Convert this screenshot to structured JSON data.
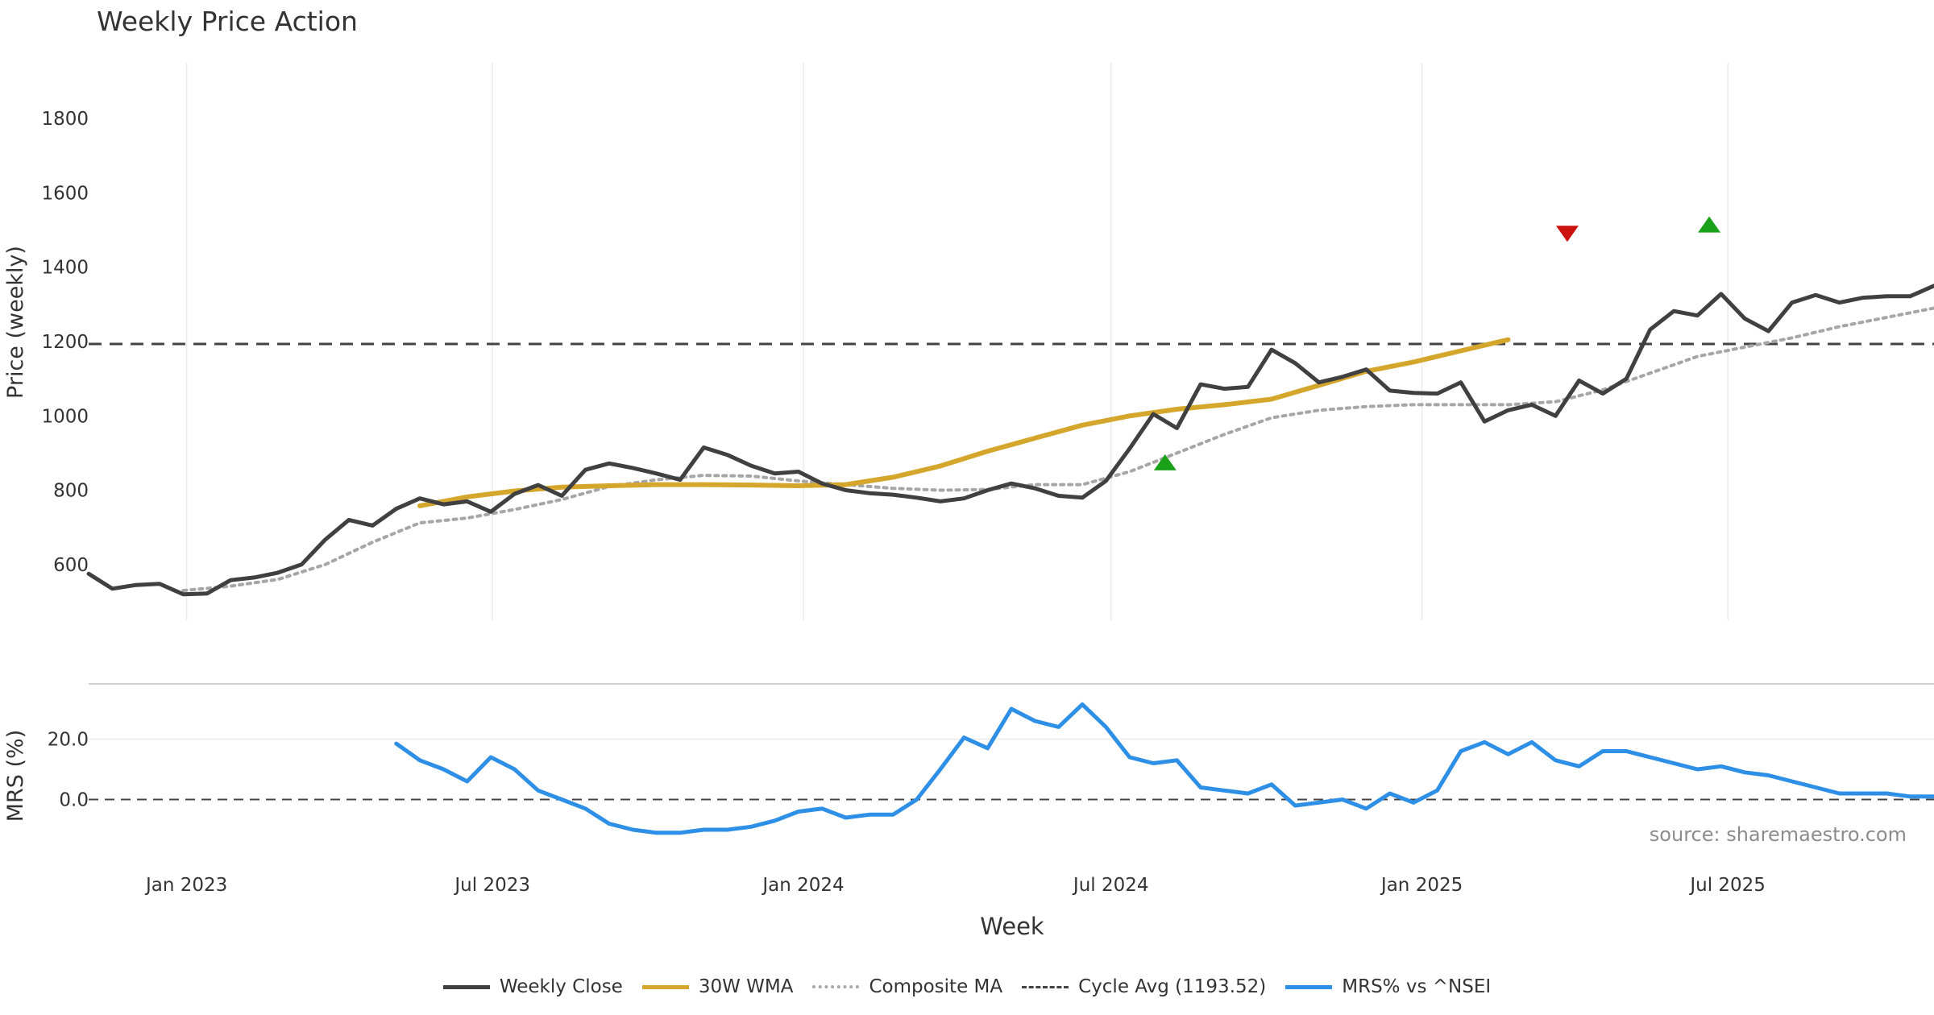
{
  "chart_data": {
    "type": "line",
    "title": "Weekly Price Action",
    "xlabel": "Week",
    "source": "source: sharemaestro.com",
    "x_ticks": [
      "Jan 2023",
      "Jul 2023",
      "Jan 2024",
      "Jul 2024",
      "Jan 2025",
      "Jul 2025"
    ],
    "x_range": [
      "2022-11-04",
      "2025-10-31"
    ],
    "panels": {
      "price": {
        "ylabel": "Price (weekly)",
        "ylim": [
          450,
          1950
        ],
        "y_ticks": [
          600,
          800,
          1000,
          1200,
          1400,
          1600,
          1800
        ],
        "grid": "vertical"
      },
      "mrs": {
        "ylabel": "MRS (%)",
        "ylim": [
          -18,
          38
        ],
        "y_ticks": [
          0.0,
          20.0
        ],
        "y_tick_labels": [
          "0.0",
          "20.0"
        ],
        "zero_line": 0
      }
    },
    "colors": {
      "close": "#404040",
      "wma": "#d4a72c",
      "composite": "#a6a6a6",
      "cycle": "#444444",
      "mrs": "#2e8fe6",
      "buy": "#1aa11a",
      "sell": "#cc1111"
    },
    "series": [
      {
        "name": "Weekly Close",
        "panel": "price",
        "style": "solid",
        "points": [
          [
            "2022-11-04",
            575
          ],
          [
            "2022-11-18",
            535
          ],
          [
            "2022-12-02",
            545
          ],
          [
            "2022-12-16",
            548
          ],
          [
            "2022-12-30",
            520
          ],
          [
            "2023-01-13",
            522
          ],
          [
            "2023-01-27",
            558
          ],
          [
            "2023-02-10",
            565
          ],
          [
            "2023-02-24",
            578
          ],
          [
            "2023-03-10",
            600
          ],
          [
            "2023-03-24",
            667
          ],
          [
            "2023-04-07",
            720
          ],
          [
            "2023-04-21",
            705
          ],
          [
            "2023-05-05",
            750
          ],
          [
            "2023-05-19",
            778
          ],
          [
            "2023-06-02",
            762
          ],
          [
            "2023-06-16",
            770
          ],
          [
            "2023-06-30",
            742
          ],
          [
            "2023-07-14",
            790
          ],
          [
            "2023-07-28",
            814
          ],
          [
            "2023-08-11",
            785
          ],
          [
            "2023-08-25",
            855
          ],
          [
            "2023-09-08",
            872
          ],
          [
            "2023-09-22",
            860
          ],
          [
            "2023-10-06",
            845
          ],
          [
            "2023-10-20",
            828
          ],
          [
            "2023-11-03",
            915
          ],
          [
            "2023-11-17",
            895
          ],
          [
            "2023-12-01",
            866
          ],
          [
            "2023-12-15",
            845
          ],
          [
            "2023-12-29",
            850
          ],
          [
            "2024-01-12",
            818
          ],
          [
            "2024-01-26",
            800
          ],
          [
            "2024-02-09",
            792
          ],
          [
            "2024-02-23",
            788
          ],
          [
            "2024-03-08",
            780
          ],
          [
            "2024-03-22",
            770
          ],
          [
            "2024-04-05",
            778
          ],
          [
            "2024-04-19",
            800
          ],
          [
            "2024-05-03",
            818
          ],
          [
            "2024-05-17",
            805
          ],
          [
            "2024-05-31",
            785
          ],
          [
            "2024-06-14",
            780
          ],
          [
            "2024-06-28",
            825
          ],
          [
            "2024-07-12",
            912
          ],
          [
            "2024-07-26",
            1005
          ],
          [
            "2024-08-09",
            967
          ],
          [
            "2024-08-23",
            1085
          ],
          [
            "2024-09-06",
            1073
          ],
          [
            "2024-09-20",
            1078
          ],
          [
            "2024-10-04",
            1178
          ],
          [
            "2024-10-18",
            1142
          ],
          [
            "2024-11-01",
            1090
          ],
          [
            "2024-11-15",
            1105
          ],
          [
            "2024-11-29",
            1125
          ],
          [
            "2024-12-13",
            1068
          ],
          [
            "2024-12-27",
            1062
          ],
          [
            "2025-01-10",
            1060
          ],
          [
            "2025-01-24",
            1090
          ],
          [
            "2025-02-07",
            985
          ],
          [
            "2025-02-21",
            1015
          ],
          [
            "2025-03-07",
            1030
          ],
          [
            "2025-03-21",
            1000
          ],
          [
            "2025-04-04",
            1095
          ],
          [
            "2025-04-18",
            1060
          ],
          [
            "2025-05-02",
            1100
          ],
          [
            "2025-05-16",
            1232
          ],
          [
            "2025-05-30",
            1282
          ],
          [
            "2025-06-13",
            1270
          ],
          [
            "2025-06-27",
            1328
          ],
          [
            "2025-07-11",
            1262
          ],
          [
            "2025-07-25",
            1228
          ],
          [
            "2025-08-08",
            1305
          ],
          [
            "2025-08-22",
            1325
          ],
          [
            "2025-09-05",
            1305
          ],
          [
            "2025-09-19",
            1318
          ],
          [
            "2025-10-03",
            1322
          ],
          [
            "2025-10-17",
            1322
          ],
          [
            "2025-10-31",
            1350
          ]
        ]
      },
      {
        "name": "30W WMA",
        "panel": "price",
        "style": "solid",
        "points": [
          [
            "2023-05-19",
            758
          ],
          [
            "2023-06-16",
            782
          ],
          [
            "2023-07-14",
            798
          ],
          [
            "2023-08-11",
            808
          ],
          [
            "2023-09-08",
            812
          ],
          [
            "2023-10-06",
            815
          ],
          [
            "2023-11-03",
            815
          ],
          [
            "2023-12-01",
            814
          ],
          [
            "2023-12-29",
            812
          ],
          [
            "2024-01-26",
            815
          ],
          [
            "2024-02-23",
            835
          ],
          [
            "2024-03-22",
            865
          ],
          [
            "2024-04-19",
            905
          ],
          [
            "2024-05-17",
            940
          ],
          [
            "2024-06-14",
            975
          ],
          [
            "2024-07-12",
            1000
          ],
          [
            "2024-08-09",
            1018
          ],
          [
            "2024-09-06",
            1030
          ],
          [
            "2024-10-04",
            1045
          ],
          [
            "2024-11-01",
            1082
          ],
          [
            "2024-11-29",
            1120
          ],
          [
            "2024-12-27",
            1145
          ],
          [
            "2025-01-24",
            1175
          ],
          [
            "2025-02-21",
            1205
          ]
        ]
      },
      {
        "name": "Composite MA",
        "panel": "price",
        "style": "dotted",
        "points": [
          [
            "2022-12-30",
            530
          ],
          [
            "2023-01-27",
            542
          ],
          [
            "2023-02-24",
            560
          ],
          [
            "2023-03-24",
            600
          ],
          [
            "2023-04-21",
            660
          ],
          [
            "2023-05-19",
            712
          ],
          [
            "2023-06-16",
            725
          ],
          [
            "2023-07-14",
            748
          ],
          [
            "2023-08-11",
            775
          ],
          [
            "2023-09-08",
            810
          ],
          [
            "2023-10-06",
            828
          ],
          [
            "2023-11-03",
            840
          ],
          [
            "2023-12-01",
            838
          ],
          [
            "2023-12-29",
            825
          ],
          [
            "2024-01-26",
            815
          ],
          [
            "2024-02-23",
            805
          ],
          [
            "2024-03-22",
            800
          ],
          [
            "2024-04-19",
            802
          ],
          [
            "2024-05-17",
            815
          ],
          [
            "2024-06-14",
            815
          ],
          [
            "2024-07-12",
            850
          ],
          [
            "2024-08-09",
            900
          ],
          [
            "2024-09-06",
            950
          ],
          [
            "2024-10-04",
            995
          ],
          [
            "2024-11-01",
            1015
          ],
          [
            "2024-11-29",
            1025
          ],
          [
            "2024-12-27",
            1030
          ],
          [
            "2025-01-24",
            1030
          ],
          [
            "2025-02-21",
            1030
          ],
          [
            "2025-03-21",
            1038
          ],
          [
            "2025-04-18",
            1070
          ],
          [
            "2025-05-16",
            1115
          ],
          [
            "2025-06-13",
            1160
          ],
          [
            "2025-07-11",
            1185
          ],
          [
            "2025-08-08",
            1210
          ],
          [
            "2025-09-05",
            1240
          ],
          [
            "2025-10-03",
            1265
          ],
          [
            "2025-10-31",
            1290
          ]
        ]
      },
      {
        "name": "Cycle Avg (1193.52)",
        "panel": "price",
        "style": "dashed",
        "value": 1193.52
      },
      {
        "name": "MRS% vs ^NSEI",
        "panel": "mrs",
        "style": "solid",
        "points": [
          [
            "2023-05-05",
            18.5
          ],
          [
            "2023-05-19",
            13
          ],
          [
            "2023-06-02",
            10
          ],
          [
            "2023-06-16",
            6
          ],
          [
            "2023-06-30",
            14
          ],
          [
            "2023-07-14",
            10
          ],
          [
            "2023-07-28",
            3
          ],
          [
            "2023-08-11",
            0
          ],
          [
            "2023-08-25",
            -3
          ],
          [
            "2023-09-08",
            -8
          ],
          [
            "2023-09-22",
            -10
          ],
          [
            "2023-10-06",
            -11
          ],
          [
            "2023-10-20",
            -11
          ],
          [
            "2023-11-03",
            -10
          ],
          [
            "2023-11-17",
            -10
          ],
          [
            "2023-12-01",
            -9
          ],
          [
            "2023-12-15",
            -7
          ],
          [
            "2023-12-29",
            -4
          ],
          [
            "2024-01-12",
            -3
          ],
          [
            "2024-01-26",
            -6
          ],
          [
            "2024-02-09",
            -5
          ],
          [
            "2024-02-23",
            -5
          ],
          [
            "2024-03-08",
            0
          ],
          [
            "2024-03-22",
            10
          ],
          [
            "2024-04-05",
            20.5
          ],
          [
            "2024-04-19",
            17
          ],
          [
            "2024-05-03",
            30
          ],
          [
            "2024-05-17",
            26
          ],
          [
            "2024-05-31",
            24
          ],
          [
            "2024-06-14",
            31.5
          ],
          [
            "2024-06-28",
            24
          ],
          [
            "2024-07-12",
            14
          ],
          [
            "2024-07-26",
            12
          ],
          [
            "2024-08-09",
            13
          ],
          [
            "2024-08-23",
            4
          ],
          [
            "2024-09-06",
            3
          ],
          [
            "2024-09-20",
            2
          ],
          [
            "2024-10-04",
            5
          ],
          [
            "2024-10-18",
            -2
          ],
          [
            "2024-11-01",
            -1
          ],
          [
            "2024-11-15",
            0
          ],
          [
            "2024-11-29",
            -3
          ],
          [
            "2024-12-13",
            2
          ],
          [
            "2024-12-27",
            -1
          ],
          [
            "2025-01-10",
            3
          ],
          [
            "2025-01-24",
            16
          ],
          [
            "2025-02-07",
            19
          ],
          [
            "2025-02-21",
            15
          ],
          [
            "2025-03-07",
            19
          ],
          [
            "2025-03-21",
            13
          ],
          [
            "2025-04-04",
            11
          ],
          [
            "2025-04-18",
            16
          ],
          [
            "2025-05-02",
            16
          ],
          [
            "2025-05-16",
            14
          ],
          [
            "2025-05-30",
            12
          ],
          [
            "2025-06-13",
            10
          ],
          [
            "2025-06-27",
            11
          ],
          [
            "2025-07-11",
            9
          ],
          [
            "2025-07-25",
            8
          ],
          [
            "2025-08-08",
            6
          ],
          [
            "2025-08-22",
            4
          ],
          [
            "2025-09-05",
            2
          ],
          [
            "2025-09-19",
            2
          ],
          [
            "2025-10-03",
            2
          ],
          [
            "2025-10-17",
            1
          ],
          [
            "2025-10-31",
            1
          ]
        ]
      }
    ],
    "markers": [
      {
        "type": "buy",
        "date": "2024-08-02",
        "value": 875
      },
      {
        "type": "sell",
        "date": "2025-03-28",
        "value": 1490
      },
      {
        "type": "buy",
        "date": "2025-06-20",
        "value": 1515
      }
    ]
  }
}
